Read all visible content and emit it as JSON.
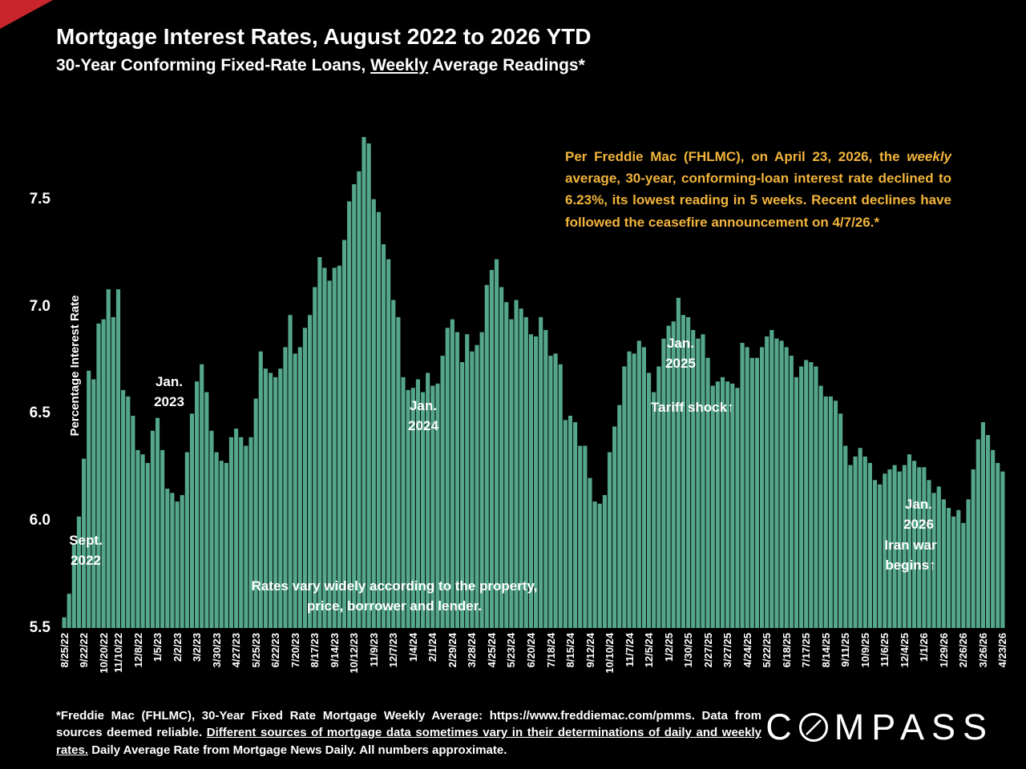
{
  "header": {
    "title": "Mortgage Interest Rates, August 2022 to 2026 YTD",
    "subtitle_prefix": "30-Year Conforming Fixed-Rate Loans, ",
    "subtitle_underlined": "Weekly",
    "subtitle_suffix": " Average Readings*"
  },
  "callout": {
    "prefix": "Per Freddie Mac (FHLMC), on April 23, 2026, the ",
    "italic_word": "weekly",
    "suffix": " average, 30-year, conforming-loan interest rate declined to 6.23%, its lowest reading in 5 weeks. Recent declines have followed the ceasefire announcement on 4/7/26.*",
    "color": "#f2b43c"
  },
  "annotations": {
    "sept_2022": "Sept.\n2022",
    "jan_2023": "Jan.\n2023",
    "jan_2024": "Jan.\n2024",
    "jan_2025": "Jan.\n2025",
    "tariff": "Tariff shock↑",
    "jan_2026": "Jan.\n2026",
    "iran_war": "Iran war begins↑",
    "rates_vary": "Rates vary widely according to the property,\nprice, borrower and lender."
  },
  "chart_data": {
    "type": "bar",
    "title": "Mortgage Interest Rates, August 2022 to 2026 YTD",
    "subtitle": "30-Year Conforming Fixed-Rate Loans, Weekly Average Readings*",
    "xlabel": "",
    "ylabel": "Percentage Interest Rate",
    "ylim": [
      5.5,
      7.85
    ],
    "yticks": [
      7.5,
      7.0,
      6.5,
      6.0,
      5.5
    ],
    "grid": false,
    "legend": false,
    "background": "#000000",
    "bar_color": "#55a78c",
    "series_name": "30-Year Fixed Rate Mortgage Weekly Average",
    "x_first": "8/25/22",
    "x_last": "4/23/26",
    "last_reading": 6.23,
    "peak_reading": 7.79,
    "x_tick_labels": [
      "8/25/22",
      "9/22/22",
      "10/20/22",
      "11/10/22",
      "12/8/22",
      "1/5/23",
      "2/2/23",
      "3/2/23",
      "3/30/23",
      "4/27/23",
      "5/25/23",
      "6/22/23",
      "7/20/23",
      "8/17/23",
      "9/14/23",
      "10/12/23",
      "11/9/23",
      "12/7/23",
      "1/4/24",
      "2/1/24",
      "2/29/24",
      "3/28/24",
      "4/25/24",
      "5/23/24",
      "6/20/24",
      "7/18/24",
      "8/15/24",
      "9/12/24",
      "10/10/24",
      "11/7/24",
      "12/5/24",
      "1/2/25",
      "1/30/25",
      "2/27/25",
      "3/27/25",
      "4/24/25",
      "5/22/25",
      "6/18/25",
      "7/17/25",
      "8/14/25",
      "9/11/25",
      "10/9/25",
      "11/6/25",
      "12/4/25",
      "1/1/26",
      "1/29/26",
      "2/26/26",
      "3/26/26",
      "4/23/26"
    ],
    "x_tick_indices": [
      0,
      4,
      8,
      11,
      15,
      19,
      23,
      27,
      31,
      35,
      39,
      43,
      47,
      51,
      55,
      59,
      63,
      67,
      71,
      75,
      79,
      83,
      87,
      91,
      95,
      99,
      103,
      107,
      111,
      115,
      119,
      123,
      127,
      131,
      135,
      139,
      143,
      147,
      151,
      155,
      159,
      163,
      167,
      171,
      175,
      179,
      183,
      187,
      191
    ],
    "weekly_values": [
      5.55,
      5.66,
      5.89,
      6.02,
      6.29,
      6.7,
      6.66,
      6.92,
      6.94,
      7.08,
      6.95,
      7.08,
      6.61,
      6.58,
      6.49,
      6.33,
      6.31,
      6.27,
      6.42,
      6.48,
      6.33,
      6.15,
      6.13,
      6.09,
      6.12,
      6.32,
      6.5,
      6.65,
      6.73,
      6.6,
      6.42,
      6.32,
      6.28,
      6.27,
      6.39,
      6.43,
      6.39,
      6.35,
      6.39,
      6.57,
      6.79,
      6.71,
      6.69,
      6.67,
      6.71,
      6.81,
      6.96,
      6.78,
      6.81,
      6.9,
      6.96,
      7.09,
      7.23,
      7.18,
      7.12,
      7.18,
      7.19,
      7.31,
      7.49,
      7.57,
      7.63,
      7.79,
      7.76,
      7.5,
      7.44,
      7.29,
      7.22,
      7.03,
      6.95,
      6.67,
      6.61,
      6.62,
      6.66,
      6.6,
      6.69,
      6.63,
      6.64,
      6.77,
      6.9,
      6.94,
      6.88,
      6.74,
      6.87,
      6.79,
      6.82,
      6.88,
      7.1,
      7.17,
      7.22,
      7.09,
      7.02,
      6.94,
      7.03,
      6.99,
      6.95,
      6.87,
      6.86,
      6.95,
      6.89,
      6.77,
      6.78,
      6.73,
      6.47,
      6.49,
      6.46,
      6.35,
      6.35,
      6.2,
      6.09,
      6.08,
      6.12,
      6.32,
      6.44,
      6.54,
      6.72,
      6.79,
      6.78,
      6.84,
      6.81,
      6.69,
      6.6,
      6.72,
      6.85,
      6.91,
      6.93,
      7.04,
      6.96,
      6.95,
      6.89,
      6.85,
      6.87,
      6.76,
      6.63,
      6.65,
      6.67,
      6.65,
      6.64,
      6.62,
      6.83,
      6.81,
      6.76,
      6.76,
      6.81,
      6.86,
      6.89,
      6.85,
      6.84,
      6.81,
      6.77,
      6.67,
      6.72,
      6.75,
      6.74,
      6.72,
      6.63,
      6.58,
      6.58,
      6.56,
      6.5,
      6.35,
      6.26,
      6.3,
      6.34,
      6.3,
      6.27,
      6.19,
      6.17,
      6.22,
      6.24,
      6.26,
      6.23,
      6.26,
      6.31,
      6.28,
      6.25,
      6.25,
      6.19,
      6.13,
      6.16,
      6.1,
      6.06,
      6.02,
      6.05,
      5.99,
      6.1,
      6.24,
      6.38,
      6.46,
      6.4,
      6.33,
      6.27,
      6.23
    ]
  },
  "footnote": {
    "part1": "*Freddie Mac (FHLMC), 30-Year Fixed Rate Mortgage Weekly Average: https://www.freddiemac.com/pmms. Data from sources deemed reliable. ",
    "underlined": "Different sources of mortgage data sometimes vary in their determinations of daily and weekly rates.",
    "part3": " Daily Average Rate from Mortgage News Daily. All numbers approximate."
  },
  "logo": {
    "prefix": "C",
    "suffix": "MPASS"
  }
}
